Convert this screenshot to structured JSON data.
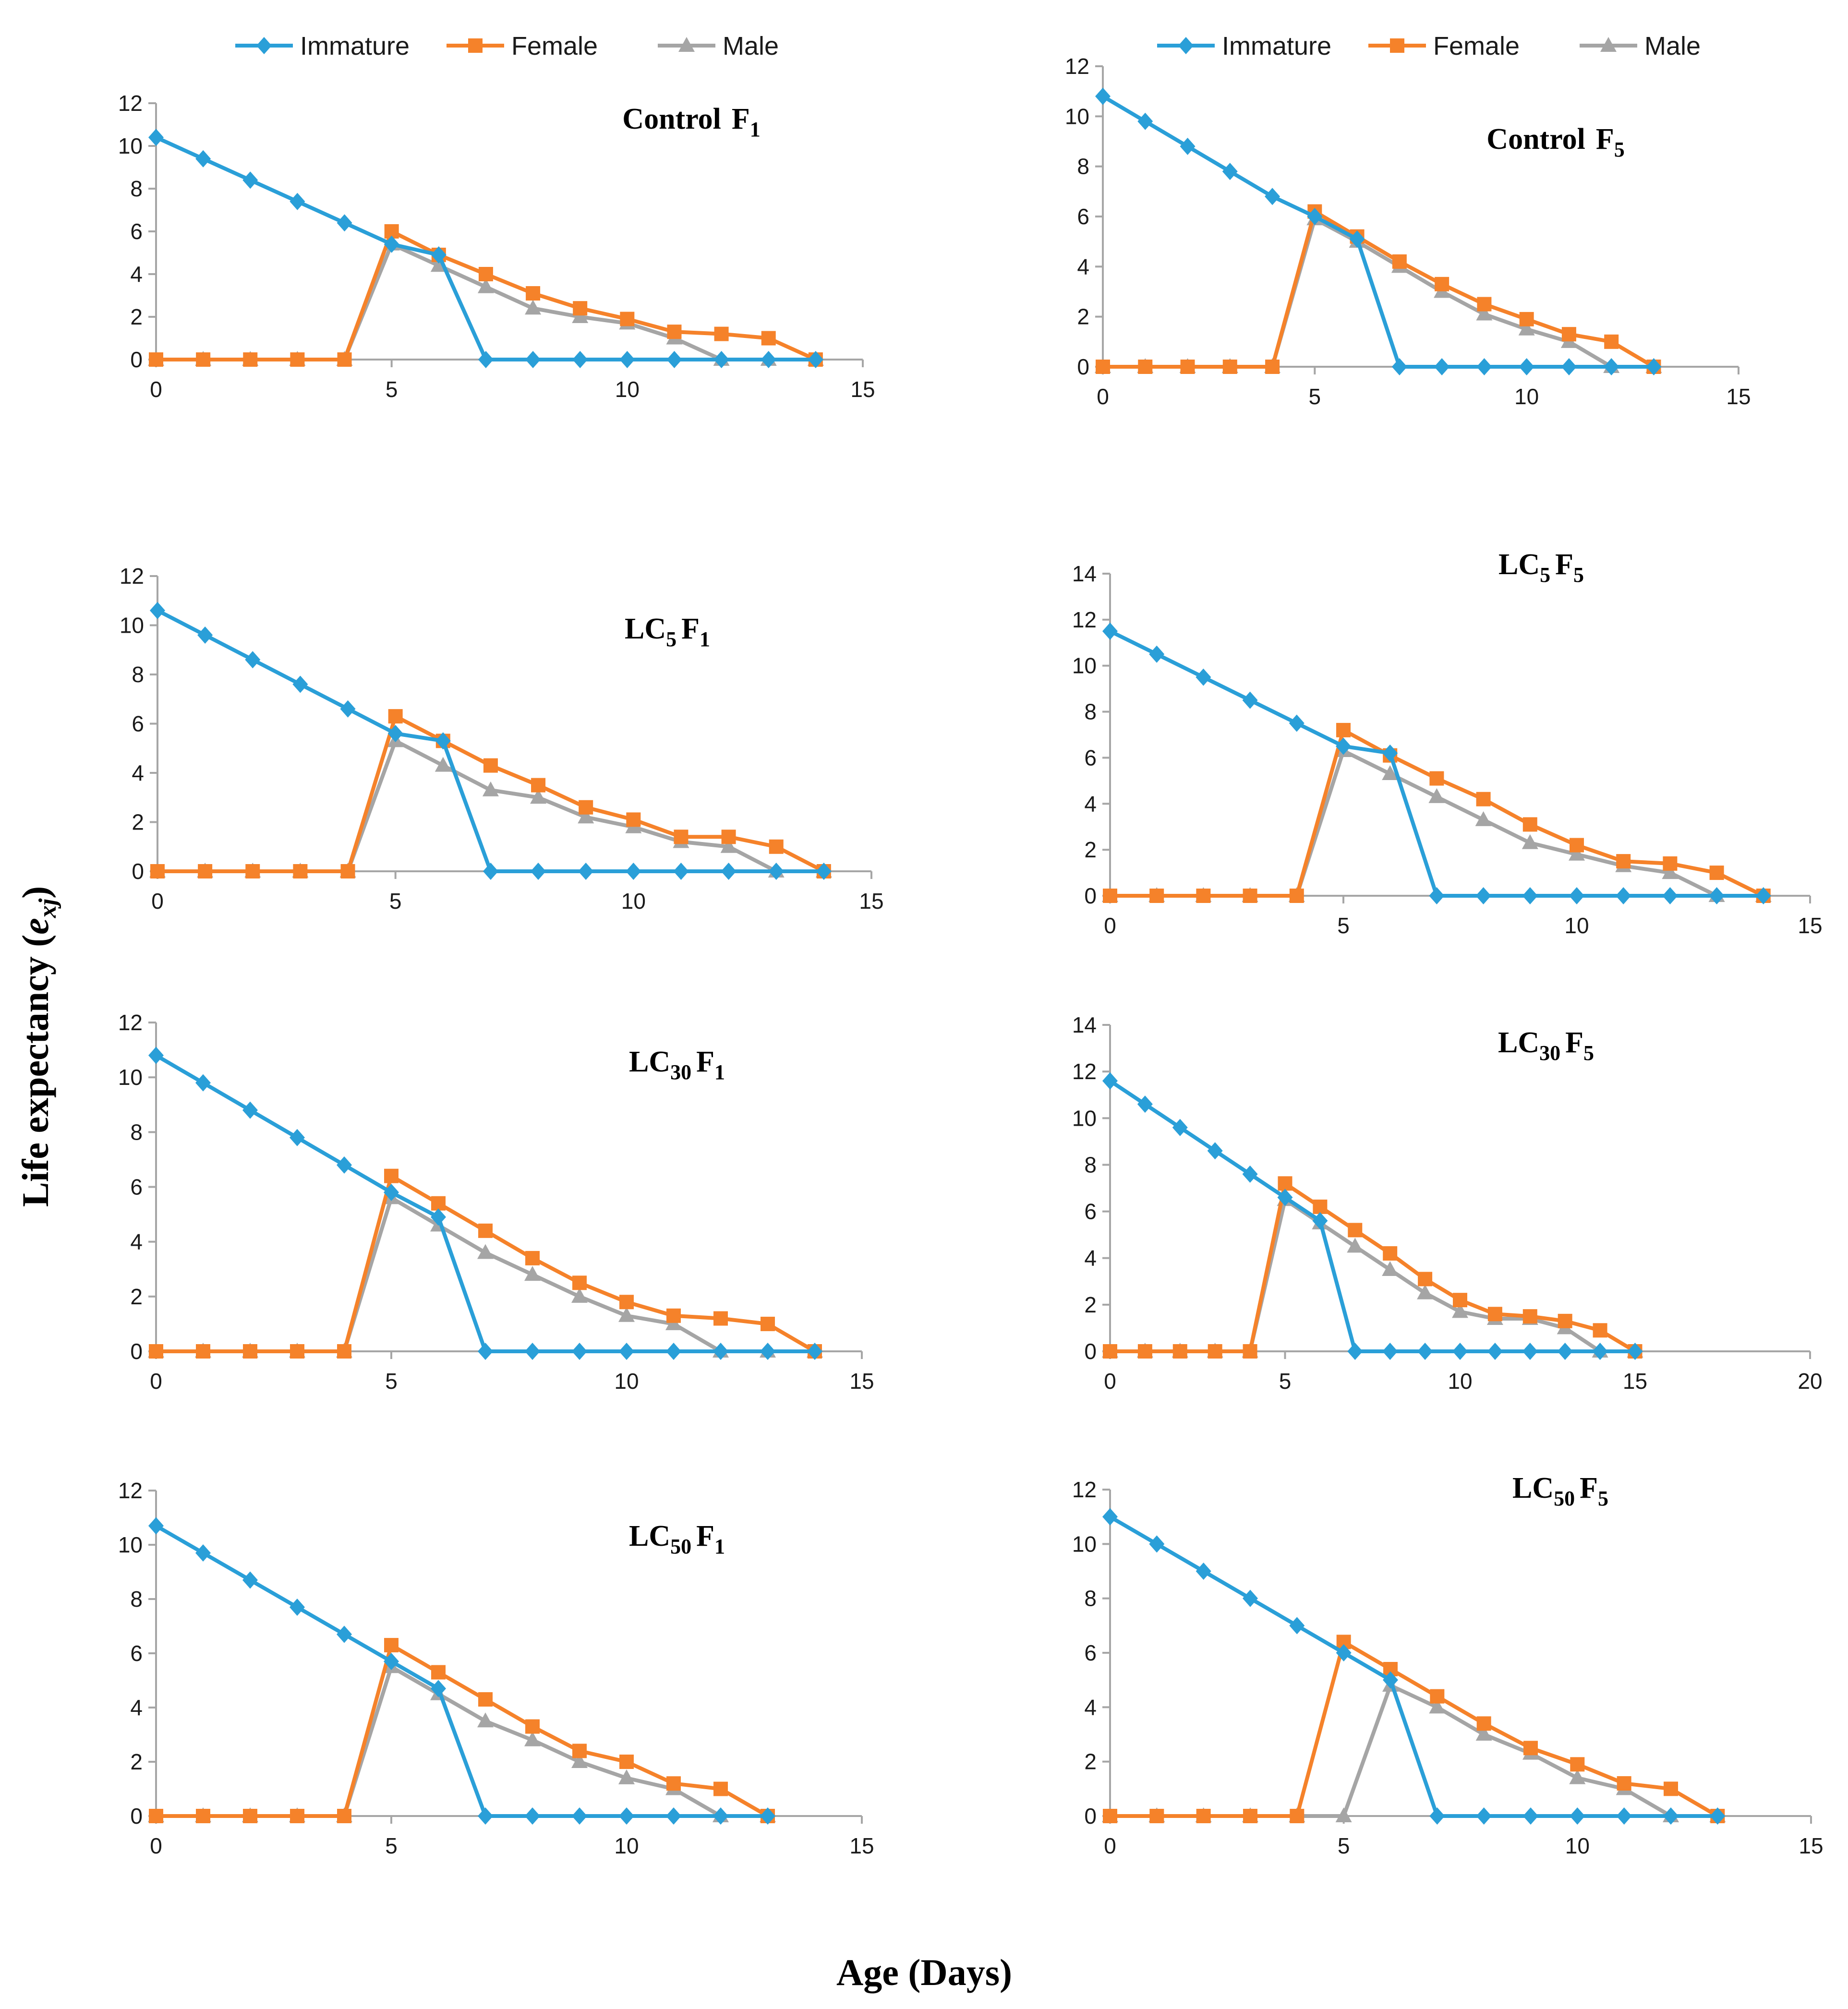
{
  "x_axis_label": "Age (Days)",
  "y_axis_label": {
    "main": "Life expectancy (",
    "var": "e",
    "sub": "xj",
    "close": ")"
  },
  "legend": [
    {
      "name": "Immature",
      "color": "#2a9fd8",
      "marker": "diamond"
    },
    {
      "name": "Female",
      "color": "#f5822a",
      "marker": "square"
    },
    {
      "name": "Male",
      "color": "#a5a5a5",
      "marker": "triangle"
    }
  ],
  "chart_data": [
    {
      "type": "line",
      "title": {
        "main": "Control",
        "sub": "",
        "gen": "F",
        "gensub": "1"
      },
      "xlim": [
        0,
        15
      ],
      "xticks": [
        0,
        5,
        10,
        15
      ],
      "ylim": [
        0,
        12
      ],
      "yticks": [
        0,
        2,
        4,
        6,
        8,
        10,
        12
      ],
      "x": [
        0,
        1,
        2,
        3,
        4,
        5,
        6,
        7,
        8,
        9,
        10,
        11,
        12,
        13,
        14
      ],
      "series": [
        {
          "name": "Immature",
          "values": [
            10.4,
            9.4,
            8.4,
            7.4,
            6.4,
            5.4,
            4.9,
            0,
            0,
            0,
            0,
            0,
            0,
            0,
            0
          ]
        },
        {
          "name": "Female",
          "values": [
            0,
            0,
            0,
            0,
            0,
            6.0,
            4.9,
            4.0,
            3.1,
            2.4,
            1.9,
            1.3,
            1.2,
            1.0,
            0
          ]
        },
        {
          "name": "Male",
          "values": [
            0,
            0,
            0,
            0,
            0,
            5.4,
            4.4,
            3.4,
            2.4,
            2.0,
            1.7,
            1.0,
            0,
            0,
            0
          ]
        }
      ]
    },
    {
      "type": "line",
      "title": {
        "main": "Control",
        "sub": "",
        "gen": "F",
        "gensub": "5"
      },
      "xlim": [
        0,
        15
      ],
      "xticks": [
        0,
        5,
        10,
        15
      ],
      "ylim": [
        0,
        12
      ],
      "yticks": [
        0,
        2,
        4,
        6,
        8,
        10,
        12
      ],
      "x": [
        0,
        1,
        2,
        3,
        4,
        5,
        6,
        7,
        8,
        9,
        10,
        11,
        12,
        13
      ],
      "series": [
        {
          "name": "Immature",
          "values": [
            10.8,
            9.8,
            8.8,
            7.8,
            6.8,
            6.0,
            5.1,
            0,
            0,
            0,
            0,
            0,
            0,
            0
          ]
        },
        {
          "name": "Female",
          "values": [
            0,
            0,
            0,
            0,
            0,
            6.2,
            5.2,
            4.2,
            3.3,
            2.5,
            1.9,
            1.3,
            1.0,
            0
          ]
        },
        {
          "name": "Male",
          "values": [
            0,
            0,
            0,
            0,
            0,
            5.9,
            5.0,
            4.0,
            3.0,
            2.1,
            1.5,
            1.0,
            0,
            0
          ]
        }
      ]
    },
    {
      "type": "line",
      "title": {
        "main": "LC",
        "sub": "5",
        "gen": "F",
        "gensub": "1"
      },
      "xlim": [
        0,
        15
      ],
      "xticks": [
        0,
        5,
        10,
        15
      ],
      "ylim": [
        0,
        12
      ],
      "yticks": [
        0,
        2,
        4,
        6,
        8,
        10,
        12
      ],
      "x": [
        0,
        1,
        2,
        3,
        4,
        5,
        6,
        7,
        8,
        9,
        10,
        11,
        12,
        13,
        14
      ],
      "series": [
        {
          "name": "Immature",
          "values": [
            10.6,
            9.6,
            8.6,
            7.6,
            6.6,
            5.6,
            5.3,
            0,
            0,
            0,
            0,
            0,
            0,
            0,
            0
          ]
        },
        {
          "name": "Female",
          "values": [
            0,
            0,
            0,
            0,
            0,
            6.3,
            5.3,
            4.3,
            3.5,
            2.6,
            2.1,
            1.4,
            1.4,
            1.0,
            0
          ]
        },
        {
          "name": "Male",
          "values": [
            0,
            0,
            0,
            0,
            0,
            5.3,
            4.3,
            3.3,
            3.0,
            2.2,
            1.8,
            1.2,
            1.0,
            0,
            0
          ]
        }
      ]
    },
    {
      "type": "line",
      "title": {
        "main": "LC",
        "sub": "5",
        "gen": "F",
        "gensub": "5"
      },
      "xlim": [
        0,
        15
      ],
      "xticks": [
        0,
        5,
        10,
        15
      ],
      "ylim": [
        0,
        14
      ],
      "yticks": [
        0,
        2,
        4,
        6,
        8,
        10,
        12,
        14
      ],
      "x": [
        0,
        1,
        2,
        3,
        4,
        5,
        6,
        7,
        8,
        9,
        10,
        11,
        12,
        13,
        14
      ],
      "series": [
        {
          "name": "Immature",
          "values": [
            11.5,
            10.5,
            9.5,
            8.5,
            7.5,
            6.5,
            6.2,
            0,
            0,
            0,
            0,
            0,
            0,
            0,
            0
          ]
        },
        {
          "name": "Female",
          "values": [
            0,
            0,
            0,
            0,
            0,
            7.2,
            6.1,
            5.1,
            4.2,
            3.1,
            2.2,
            1.5,
            1.4,
            1.0,
            0
          ]
        },
        {
          "name": "Male",
          "values": [
            0,
            0,
            0,
            0,
            0,
            6.3,
            5.3,
            4.3,
            3.3,
            2.3,
            1.8,
            1.3,
            1.0,
            0,
            0
          ]
        }
      ]
    },
    {
      "type": "line",
      "title": {
        "main": "LC",
        "sub": "30",
        "gen": "F",
        "gensub": "1"
      },
      "xlim": [
        0,
        15
      ],
      "xticks": [
        0,
        5,
        10,
        15
      ],
      "ylim": [
        0,
        12
      ],
      "yticks": [
        0,
        2,
        4,
        6,
        8,
        10,
        12
      ],
      "x": [
        0,
        1,
        2,
        3,
        4,
        5,
        6,
        7,
        8,
        9,
        10,
        11,
        12,
        13,
        14
      ],
      "series": [
        {
          "name": "Immature",
          "values": [
            10.8,
            9.8,
            8.8,
            7.8,
            6.8,
            5.8,
            4.9,
            0,
            0,
            0,
            0,
            0,
            0,
            0,
            0
          ]
        },
        {
          "name": "Female",
          "values": [
            0,
            0,
            0,
            0,
            0,
            6.4,
            5.4,
            4.4,
            3.4,
            2.5,
            1.8,
            1.3,
            1.2,
            1.0,
            0
          ]
        },
        {
          "name": "Male",
          "values": [
            0,
            0,
            0,
            0,
            0,
            5.6,
            4.6,
            3.6,
            2.8,
            2.0,
            1.3,
            1.0,
            0,
            0,
            0
          ]
        }
      ]
    },
    {
      "type": "line",
      "title": {
        "main": "LC",
        "sub": "30",
        "gen": "F",
        "gensub": "5"
      },
      "xlim": [
        0,
        20
      ],
      "xticks": [
        0,
        5,
        10,
        15,
        20
      ],
      "ylim": [
        0,
        14
      ],
      "yticks": [
        0,
        2,
        4,
        6,
        8,
        10,
        12,
        14
      ],
      "x": [
        0,
        1,
        2,
        3,
        4,
        5,
        6,
        7,
        8,
        9,
        10,
        11,
        12,
        13,
        14,
        15
      ],
      "series": [
        {
          "name": "Immature",
          "values": [
            11.6,
            10.6,
            9.6,
            8.6,
            7.6,
            6.6,
            5.6,
            0,
            0,
            0,
            0,
            0,
            0,
            0,
            0,
            0
          ]
        },
        {
          "name": "Female",
          "values": [
            0,
            0,
            0,
            0,
            0,
            7.2,
            6.2,
            5.2,
            4.2,
            3.1,
            2.2,
            1.6,
            1.5,
            1.3,
            0.9,
            0
          ]
        },
        {
          "name": "Male",
          "values": [
            0,
            0,
            0,
            0,
            0,
            6.5,
            5.5,
            4.5,
            3.5,
            2.5,
            1.7,
            1.4,
            1.4,
            1.0,
            0,
            0
          ]
        }
      ]
    },
    {
      "type": "line",
      "title": {
        "main": "LC",
        "sub": "50",
        "gen": "F",
        "gensub": "1"
      },
      "xlim": [
        0,
        15
      ],
      "xticks": [
        0,
        5,
        10,
        15
      ],
      "ylim": [
        0,
        12
      ],
      "yticks": [
        0,
        2,
        4,
        6,
        8,
        10,
        12
      ],
      "x": [
        0,
        1,
        2,
        3,
        4,
        5,
        6,
        7,
        8,
        9,
        10,
        11,
        12,
        13
      ],
      "series": [
        {
          "name": "Immature",
          "values": [
            10.7,
            9.7,
            8.7,
            7.7,
            6.7,
            5.7,
            4.7,
            0,
            0,
            0,
            0,
            0,
            0,
            0
          ]
        },
        {
          "name": "Female",
          "values": [
            0,
            0,
            0,
            0,
            0,
            6.3,
            5.3,
            4.3,
            3.3,
            2.4,
            2.0,
            1.2,
            1.0,
            0
          ]
        },
        {
          "name": "Male",
          "values": [
            0,
            0,
            0,
            0,
            0,
            5.5,
            4.5,
            3.5,
            2.8,
            2.0,
            1.4,
            1.0,
            0,
            0
          ]
        }
      ]
    },
    {
      "type": "line",
      "title": {
        "main": "LC",
        "sub": "50",
        "gen": "F",
        "gensub": "5"
      },
      "xlim": [
        0,
        15
      ],
      "xticks": [
        0,
        5,
        10,
        15
      ],
      "ylim": [
        0,
        12
      ],
      "yticks": [
        0,
        2,
        4,
        6,
        8,
        10,
        12
      ],
      "x": [
        0,
        1,
        2,
        3,
        4,
        5,
        6,
        7,
        8,
        9,
        10,
        11,
        12,
        13
      ],
      "series": [
        {
          "name": "Immature",
          "values": [
            11.0,
            10.0,
            9.0,
            8.0,
            7.0,
            6.0,
            5.0,
            0,
            0,
            0,
            0,
            0,
            0,
            0
          ]
        },
        {
          "name": "Female",
          "values": [
            0,
            0,
            0,
            0,
            0,
            6.4,
            5.4,
            4.4,
            3.4,
            2.5,
            1.9,
            1.2,
            1.0,
            0
          ]
        },
        {
          "name": "Male",
          "values": [
            0,
            0,
            0,
            0,
            0,
            0,
            4.8,
            4.0,
            3.0,
            2.3,
            1.4,
            1.0,
            0,
            0
          ]
        }
      ]
    }
  ]
}
